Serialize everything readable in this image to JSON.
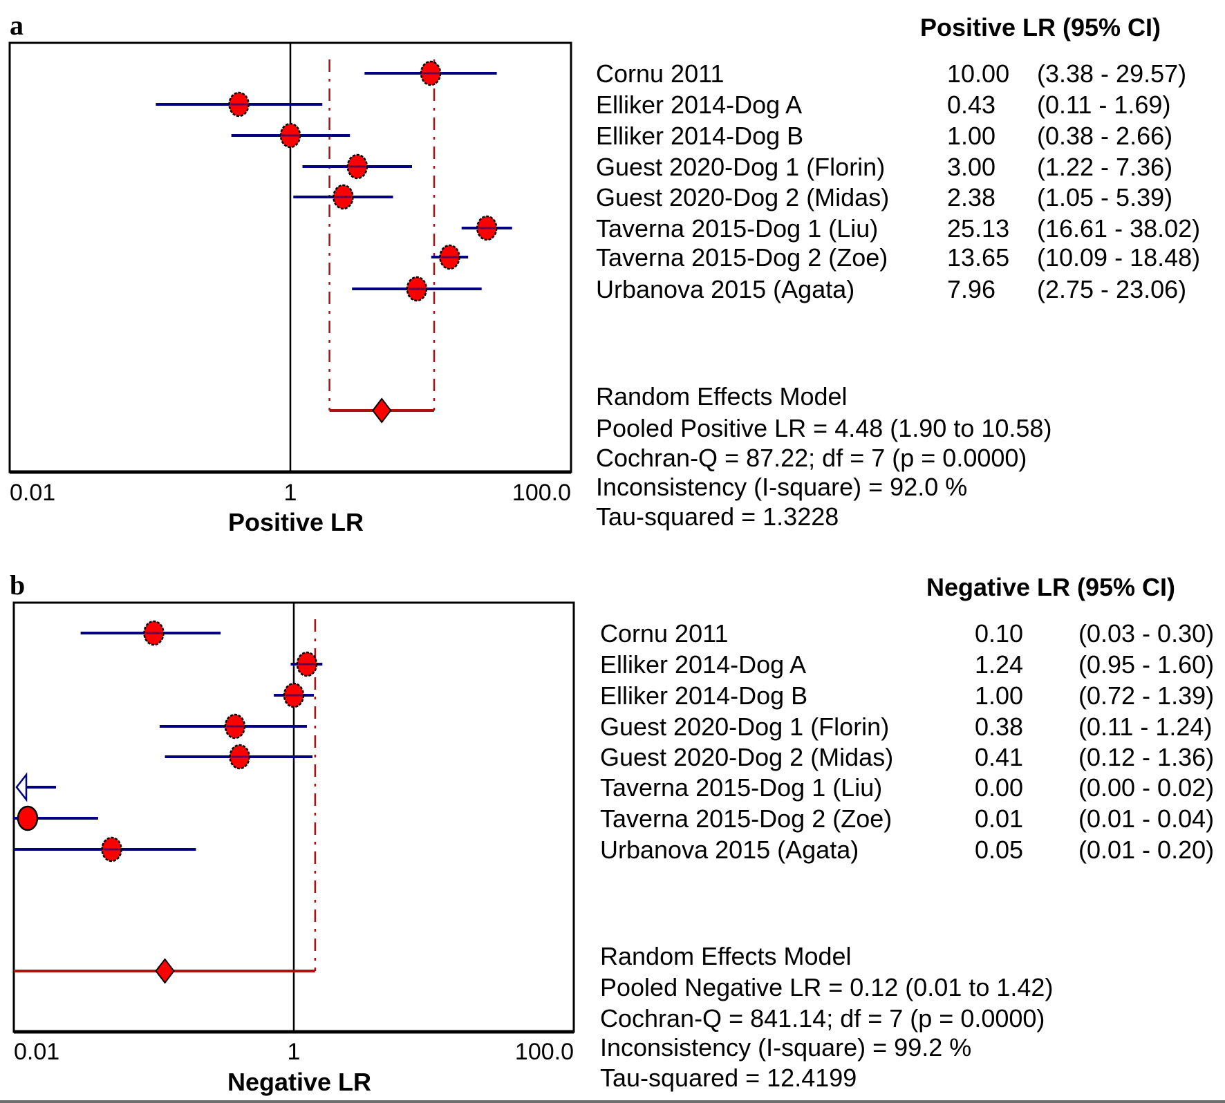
{
  "figure": {
    "panels": [
      "a",
      "b"
    ]
  },
  "chart_data": [
    {
      "type": "forest",
      "panel_label": "a",
      "title": "Positive LR (95% CI)",
      "xlabel": "Positive LR",
      "xscale": "log",
      "xlim": [
        0.01,
        100.0
      ],
      "xticks": [
        "0.01",
        "1",
        "100.0"
      ],
      "reference_line": 1,
      "studies": [
        {
          "name": "Cornu 2011",
          "value": 10.0,
          "lower": 3.38,
          "upper": 29.57,
          "value_text": "10.00",
          "ci_text": "(3.38 - 29.57)"
        },
        {
          "name": "Elliker 2014-Dog A",
          "value": 0.43,
          "lower": 0.11,
          "upper": 1.69,
          "value_text": "0.43",
          "ci_text": "(0.11 - 1.69)"
        },
        {
          "name": "Elliker 2014-Dog B",
          "value": 1.0,
          "lower": 0.38,
          "upper": 2.66,
          "value_text": "1.00",
          "ci_text": "(0.38 - 2.66)"
        },
        {
          "name": "Guest 2020-Dog 1 (Florin)",
          "value": 3.0,
          "lower": 1.22,
          "upper": 7.36,
          "value_text": "3.00",
          "ci_text": "(1.22 - 7.36)"
        },
        {
          "name": "Guest 2020-Dog 2 (Midas)",
          "value": 2.38,
          "lower": 1.05,
          "upper": 5.39,
          "value_text": "2.38",
          "ci_text": "(1.05 - 5.39)"
        },
        {
          "name": "Taverna 2015-Dog 1 (Liu)",
          "value": 25.13,
          "lower": 16.61,
          "upper": 38.02,
          "value_text": "25.13",
          "ci_text": "(16.61 - 38.02)"
        },
        {
          "name": "Taverna 2015-Dog 2 (Zoe)",
          "value": 13.65,
          "lower": 10.09,
          "upper": 18.48,
          "value_text": "13.65",
          "ci_text": "(10.09 - 18.48)"
        },
        {
          "name": "Urbanova 2015 (Agata)",
          "value": 7.96,
          "lower": 2.75,
          "upper": 23.06,
          "value_text": "7.96",
          "ci_text": "(2.75 - 23.06)"
        }
      ],
      "pooled": {
        "value": 4.48,
        "lower": 1.9,
        "upper": 10.58
      },
      "summary": [
        "Random Effects Model",
        "Pooled Positive LR = 4.48 (1.90 to 10.58)",
        "Cochran-Q = 87.22; df =  7 (p = 0.0000)",
        "Inconsistency (I-square) = 92.0 %",
        "Tau-squared = 1.3228"
      ],
      "colors": {
        "point": "#ff0000",
        "ci_line": "#000080",
        "pooled": "#b01010",
        "reference": "#000000"
      }
    },
    {
      "type": "forest",
      "panel_label": "b",
      "title": "Negative LR (95% CI)",
      "xlabel": "Negative LR",
      "xscale": "log",
      "xlim": [
        0.01,
        100.0
      ],
      "xticks": [
        "0.01",
        "1",
        "100.0"
      ],
      "reference_line": 1,
      "studies": [
        {
          "name": "Cornu 2011",
          "value": 0.1,
          "lower": 0.03,
          "upper": 0.3,
          "value_text": "0.10",
          "ci_text": "(0.03 - 0.30)"
        },
        {
          "name": "Elliker 2014-Dog A",
          "value": 1.24,
          "lower": 0.95,
          "upper": 1.6,
          "value_text": "1.24",
          "ci_text": "(0.95 - 1.60)"
        },
        {
          "name": "Elliker 2014-Dog B",
          "value": 1.0,
          "lower": 0.72,
          "upper": 1.39,
          "value_text": "1.00",
          "ci_text": "(0.72 - 1.39)"
        },
        {
          "name": "Guest 2020-Dog 1 (Florin)",
          "value": 0.38,
          "lower": 0.11,
          "upper": 1.24,
          "value_text": "0.38",
          "ci_text": "(0.11 - 1.24)"
        },
        {
          "name": "Guest 2020-Dog 2 (Midas)",
          "value": 0.41,
          "lower": 0.12,
          "upper": 1.36,
          "value_text": "0.41",
          "ci_text": "(0.12 - 1.36)"
        },
        {
          "name": "Taverna 2015-Dog 1 (Liu)",
          "value": 0.0,
          "lower": 0.0,
          "upper": 0.02,
          "value_text": "0.00",
          "ci_text": "(0.00 - 0.02)"
        },
        {
          "name": "Taverna 2015-Dog 2 (Zoe)",
          "value": 0.01,
          "lower": 0.01,
          "upper": 0.04,
          "value_text": "0.01",
          "ci_text": "(0.01 - 0.04)"
        },
        {
          "name": "Urbanova 2015 (Agata)",
          "value": 0.05,
          "lower": 0.01,
          "upper": 0.2,
          "value_text": "0.05",
          "ci_text": "(0.01 - 0.20)"
        }
      ],
      "pooled": {
        "value": 0.12,
        "lower": 0.01,
        "upper": 1.42
      },
      "summary": [
        "Random Effects Model",
        "Pooled Negative LR = 0.12 (0.01 to 1.42)",
        "Cochran-Q = 841.14; df =  7 (p = 0.0000)",
        "Inconsistency (I-square) = 99.2 %",
        "Tau-squared = 12.4199"
      ],
      "colors": {
        "point": "#ff0000",
        "ci_line": "#000080",
        "pooled": "#b01010",
        "reference": "#000000"
      }
    }
  ]
}
